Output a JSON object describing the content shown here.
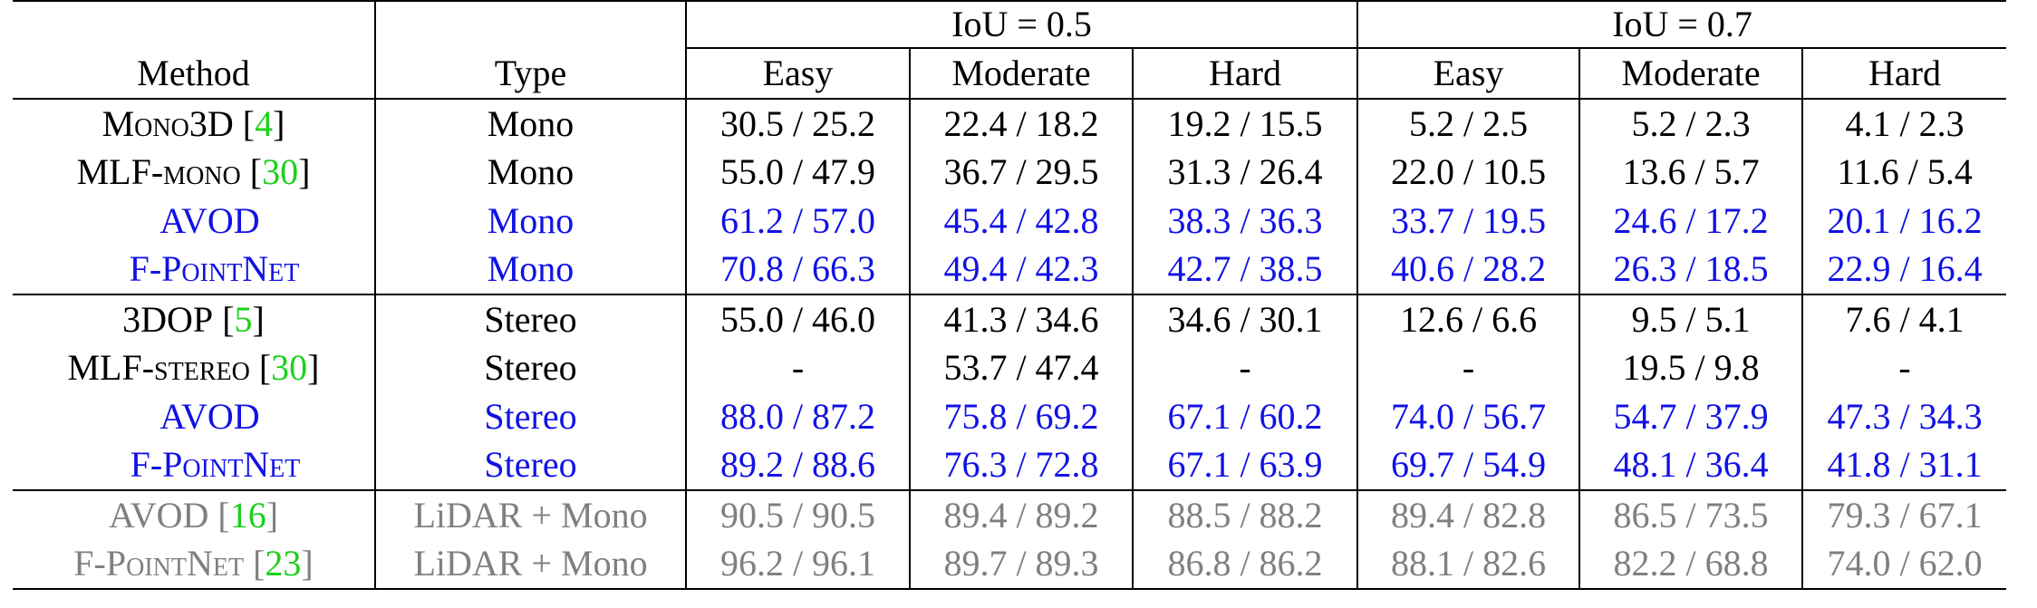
{
  "header": {
    "method": "Method",
    "type": "Type",
    "iou_groups": [
      "IoU = 0.5",
      "IoU = 0.7"
    ],
    "difficulties": [
      "Easy",
      "Moderate",
      "Hard",
      "Easy",
      "Moderate",
      "Hard"
    ]
  },
  "groups": [
    {
      "rows": [
        {
          "method": "Mono3D",
          "cite": "4",
          "type": "Mono",
          "style": "black",
          "values": [
            "30.5 / 25.2",
            "22.4 / 18.2",
            "19.2 / 15.5",
            "5.2 / 2.5",
            "5.2 / 2.3",
            "4.1 / 2.3"
          ]
        },
        {
          "method": "MLF-mono",
          "cite": "30",
          "type": "Mono",
          "style": "black",
          "values": [
            "55.0 / 47.9",
            "36.7 / 29.5",
            "31.3 / 26.4",
            "22.0 / 10.5",
            "13.6 / 5.7",
            "11.6 / 5.4"
          ]
        },
        {
          "method": "AVOD",
          "cite": "",
          "type": "Mono",
          "style": "blue",
          "values": [
            "61.2 / 57.0",
            "45.4 / 42.8",
            "38.3 / 36.3",
            "33.7 / 19.5",
            "24.6 / 17.2",
            "20.1 / 16.2"
          ]
        },
        {
          "method": "F-PointNet",
          "cite": "",
          "type": "Mono",
          "style": "blue",
          "values": [
            "70.8 / 66.3",
            "49.4 / 42.3",
            "42.7 / 38.5",
            "40.6 / 28.2",
            "26.3 / 18.5",
            "22.9 / 16.4"
          ]
        }
      ]
    },
    {
      "rows": [
        {
          "method": "3DOP",
          "cite": "5",
          "type": "Stereo",
          "style": "black",
          "values": [
            "55.0 / 46.0",
            "41.3 / 34.6",
            "34.6 / 30.1",
            "12.6 / 6.6",
            "9.5 / 5.1",
            "7.6 / 4.1"
          ]
        },
        {
          "method": "MLF-stereo",
          "cite": "30",
          "type": "Stereo",
          "style": "black",
          "values": [
            "-",
            "53.7 / 47.4",
            "-",
            "-",
            "19.5 / 9.8",
            "-"
          ]
        },
        {
          "method": "AVOD",
          "cite": "",
          "type": "Stereo",
          "style": "blue",
          "values": [
            "88.0 / 87.2",
            "75.8 / 69.2",
            "67.1 / 60.2",
            "74.0 / 56.7",
            "54.7 / 37.9",
            "47.3 / 34.3"
          ]
        },
        {
          "method": "F-PointNet",
          "cite": "",
          "type": "Stereo",
          "style": "blue",
          "values": [
            "89.2 / 88.6",
            "76.3 / 72.8",
            "67.1 / 63.9",
            "69.7 / 54.9",
            "48.1 / 36.4",
            "41.8 / 31.1"
          ]
        }
      ]
    },
    {
      "rows": [
        {
          "method": "AVOD",
          "cite": "16",
          "type": "LiDAR + Mono",
          "style": "gray",
          "values": [
            "90.5 / 90.5",
            "89.4 / 89.2",
            "88.5 / 88.2",
            "89.4 / 82.8",
            "86.5 / 73.5",
            "79.3 / 67.1"
          ]
        },
        {
          "method": "F-PointNet",
          "cite": "23",
          "type": "LiDAR + Mono",
          "style": "gray",
          "values": [
            "96.2 / 96.1",
            "89.7 / 89.3",
            "86.8 / 86.2",
            "88.1 / 82.6",
            "82.2 / 68.8",
            "74.0 / 62.0"
          ]
        }
      ]
    }
  ]
}
